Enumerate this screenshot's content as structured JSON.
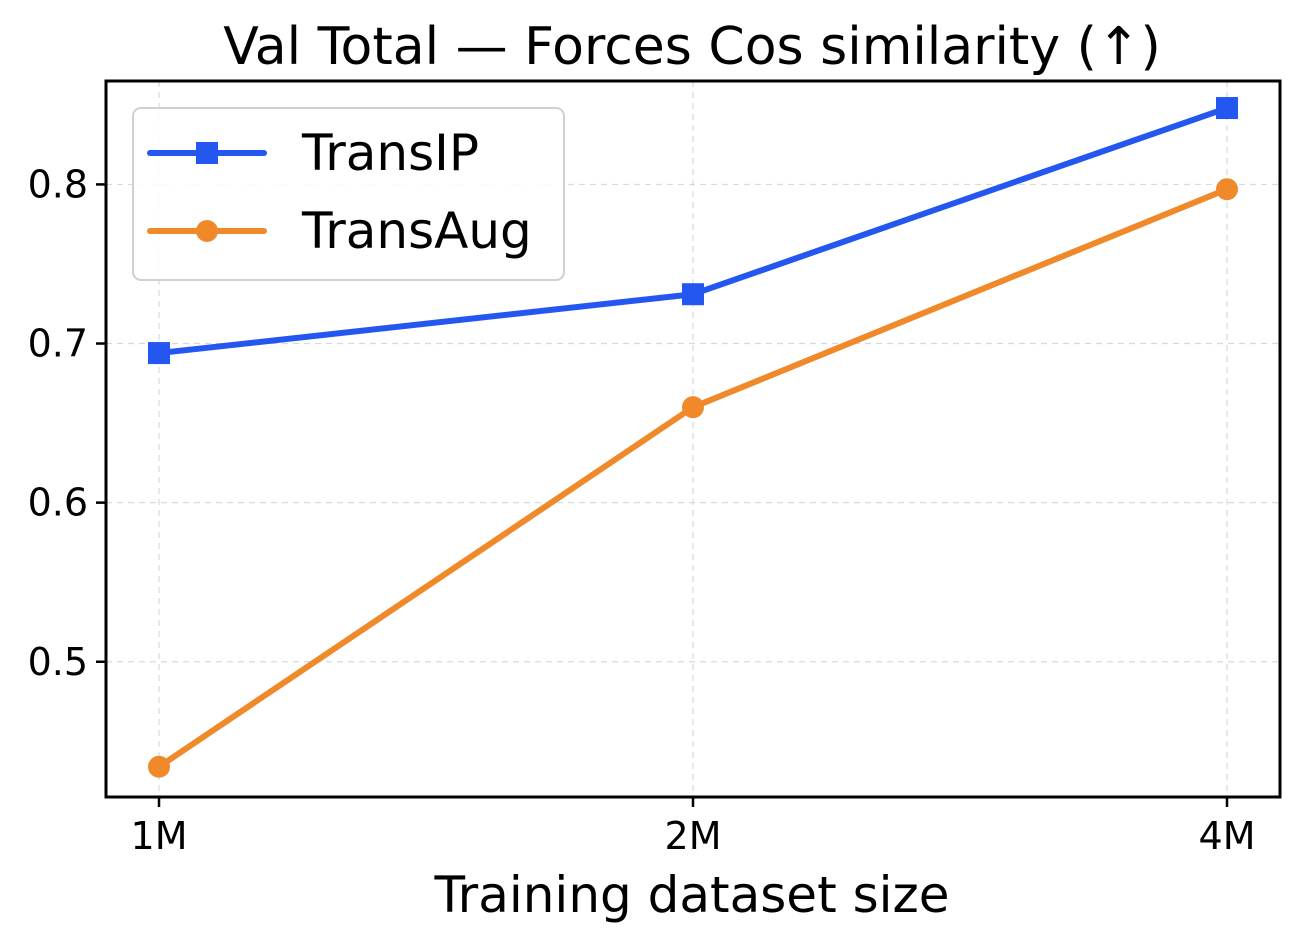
{
  "chart_data": {
    "type": "line",
    "title": "Val Total — Forces Cos similarity (↑)",
    "xlabel": "Training dataset size",
    "ylabel": "",
    "x_categories": [
      "1M",
      "2M",
      "4M"
    ],
    "x_scale": "log2",
    "x_values": [
      1,
      2,
      4
    ],
    "ylim": [
      0.415,
      0.865
    ],
    "yticks": [
      0.5,
      0.6,
      0.7,
      0.8
    ],
    "ytick_labels": [
      "0.5",
      "0.6",
      "0.7",
      "0.8"
    ],
    "grid": true,
    "legend_position": "top-left",
    "series": [
      {
        "name": "TransIP",
        "values": [
          0.694,
          0.731,
          0.848
        ],
        "color": "#2456f0",
        "marker": "square"
      },
      {
        "name": "TransAug",
        "values": [
          0.434,
          0.66,
          0.797
        ],
        "color": "#f0892a",
        "marker": "circle"
      }
    ]
  }
}
